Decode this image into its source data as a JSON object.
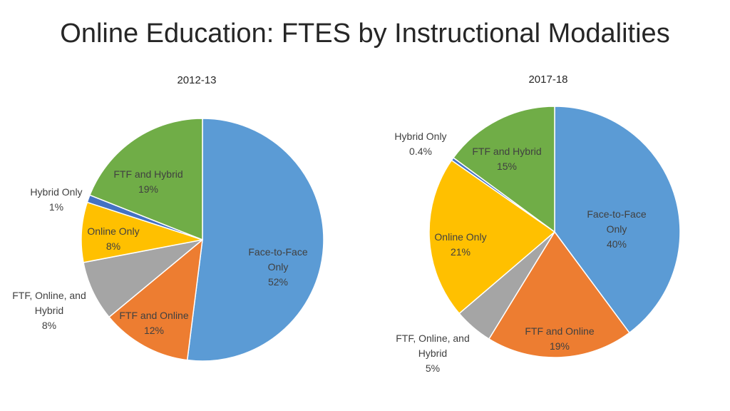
{
  "page": {
    "title": "Online Education: FTES by Instructional Modalities"
  },
  "chart_data": [
    {
      "type": "pie",
      "title": "2012-13",
      "slices": [
        {
          "label": "Face-to-Face Only",
          "value": 52,
          "display": "52%",
          "color": "#5B9BD5"
        },
        {
          "label": "FTF and Online",
          "value": 12,
          "display": "12%",
          "color": "#ED7D31"
        },
        {
          "label": "FTF, Online, and Hybrid",
          "value": 8,
          "display": "8%",
          "color": "#A5A5A5"
        },
        {
          "label": "Online Only",
          "value": 8,
          "display": "8%",
          "color": "#FFC000"
        },
        {
          "label": "Hybrid Only",
          "value": 1,
          "display": "1%",
          "color": "#4472C4"
        },
        {
          "label": "FTF and Hybrid",
          "value": 19,
          "display": "19%",
          "color": "#70AD47"
        }
      ]
    },
    {
      "type": "pie",
      "title": "2017-18",
      "slices": [
        {
          "label": "Face-to-Face Only",
          "value": 40,
          "display": "40%",
          "color": "#5B9BD5"
        },
        {
          "label": "FTF and Online",
          "value": 19,
          "display": "19%",
          "color": "#ED7D31"
        },
        {
          "label": "FTF, Online, and Hybrid",
          "value": 5,
          "display": "5%",
          "color": "#A5A5A5"
        },
        {
          "label": "Online Only",
          "value": 21,
          "display": "21%",
          "color": "#FFC000"
        },
        {
          "label": "Hybrid Only",
          "value": 0.4,
          "display": "0.4%",
          "color": "#4472C4"
        },
        {
          "label": "FTF and Hybrid",
          "value": 15,
          "display": "15%",
          "color": "#70AD47"
        }
      ]
    }
  ]
}
